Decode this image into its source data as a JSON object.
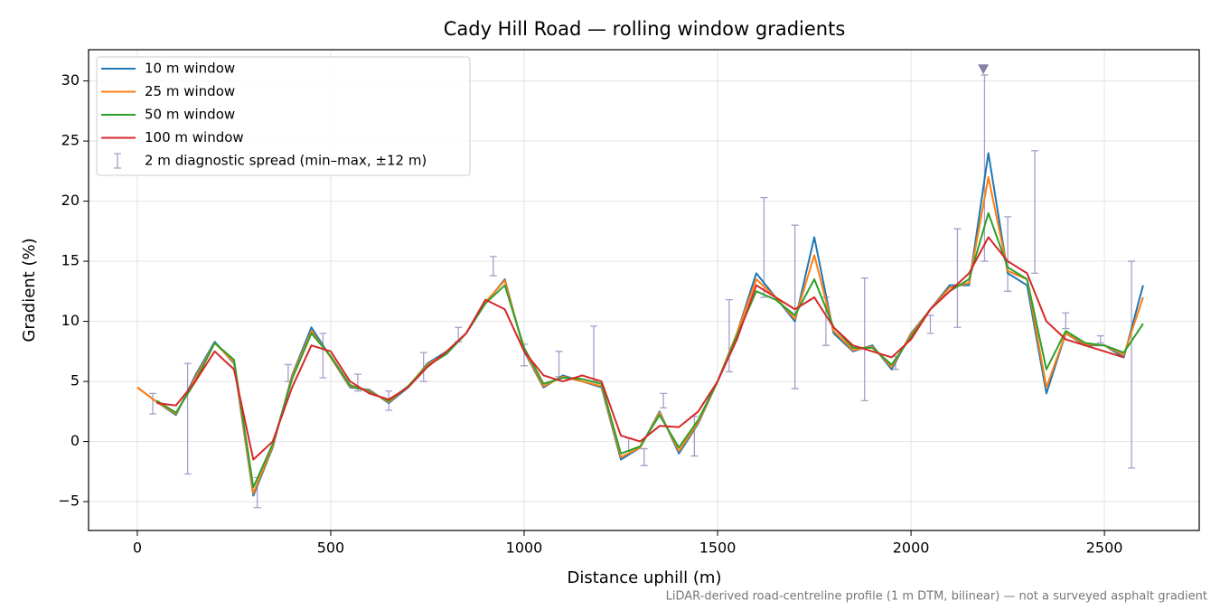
{
  "chart_data": {
    "type": "line",
    "title": "Cady Hill Road — rolling window gradients",
    "x_label": "Distance uphill (m)",
    "y_label": "Gradient (%)",
    "footnote": "LiDAR-derived road-centreline profile (1 m DTM, bilinear) — not a surveyed asphalt gradient",
    "xlim": [
      -126,
      2745
    ],
    "ylim": [
      -7.4,
      32.6
    ],
    "xticks": [
      0,
      500,
      1000,
      1500,
      2000,
      2500
    ],
    "yticks": [
      {
        "value": -5,
        "label": "−5"
      },
      0,
      5,
      10,
      15,
      20,
      25,
      30
    ],
    "grid": true,
    "legend": "upper left",
    "x": [
      0,
      50,
      100,
      150,
      200,
      250,
      300,
      350,
      400,
      450,
      500,
      550,
      600,
      650,
      700,
      750,
      800,
      850,
      900,
      950,
      1000,
      1050,
      1100,
      1150,
      1200,
      1250,
      1300,
      1350,
      1400,
      1450,
      1500,
      1550,
      1600,
      1650,
      1700,
      1750,
      1800,
      1850,
      1900,
      1950,
      2000,
      2050,
      2100,
      2150,
      2200,
      2250,
      2300,
      2350,
      2400,
      2450,
      2500,
      2550,
      2600
    ],
    "series": [
      {
        "name": "10 m window",
        "color": "#1f77b4",
        "values": [
          4.5,
          3.3,
          2.2,
          5.5,
          8.3,
          6.5,
          -4.5,
          -0.5,
          5.5,
          9.5,
          7,
          4.5,
          4.3,
          3.2,
          4.5,
          6.5,
          7.5,
          9,
          11.5,
          13.5,
          7.5,
          4.5,
          5.5,
          5,
          4.5,
          -1.5,
          -0.5,
          2.5,
          -1,
          1.5,
          5,
          9,
          14,
          12,
          10,
          17,
          9,
          7.5,
          8,
          6,
          9,
          11,
          13,
          13,
          24,
          14,
          13,
          4,
          9,
          8,
          8,
          7,
          13
        ]
      },
      {
        "name": "25 m window",
        "color": "#ff7f0e",
        "values": [
          4.5,
          3.3,
          2.3,
          5.3,
          8.2,
          6.6,
          -4.3,
          -0.4,
          5.4,
          9.2,
          7,
          4.6,
          4.2,
          3.3,
          4.6,
          6.4,
          7.4,
          9,
          11.6,
          13.4,
          7.6,
          4.6,
          5.4,
          5,
          4.6,
          -1.3,
          -0.5,
          2.4,
          -0.8,
          1.6,
          5,
          9,
          13.5,
          12,
          10.2,
          15.5,
          9.2,
          7.6,
          7.9,
          6.2,
          8.9,
          11,
          12.8,
          13.2,
          22,
          14.2,
          13.5,
          4.5,
          9,
          8.1,
          8,
          7.2,
          12
        ]
      },
      {
        "name": "50 m window",
        "color": "#2ca02c",
        "values": [
          null,
          3.4,
          2.4,
          5,
          8.2,
          6.8,
          -3.8,
          -0.2,
          5.2,
          9,
          7.1,
          4.7,
          4.1,
          3.4,
          4.6,
          6.3,
          7.3,
          9,
          11.5,
          13,
          7.8,
          4.8,
          5.3,
          5.2,
          4.8,
          -1,
          -0.4,
          2.2,
          -0.5,
          1.8,
          5,
          8.8,
          12.5,
          11.8,
          10.5,
          13.5,
          9.5,
          7.8,
          7.8,
          6.4,
          8.7,
          11,
          12.5,
          13.5,
          19,
          14.5,
          13.5,
          6,
          9.2,
          8.2,
          8,
          7.4,
          9.8
        ]
      },
      {
        "name": "100 m window",
        "color": "#d62728",
        "values": [
          null,
          3.2,
          3,
          5,
          7.5,
          6,
          -1.5,
          0,
          4.5,
          8,
          7.5,
          5,
          4,
          3.5,
          4.5,
          6.2,
          7.5,
          9,
          11.8,
          11,
          7.5,
          5.5,
          5,
          5.5,
          5,
          0.5,
          0,
          1.3,
          1.2,
          2.5,
          5,
          8.5,
          13,
          12,
          11,
          12,
          9.5,
          8,
          7.5,
          7,
          8.5,
          11,
          12.5,
          14,
          17,
          15,
          14,
          10,
          8.5,
          8,
          7.5,
          7,
          null
        ]
      }
    ],
    "error_bars": {
      "name": "2 m diagnostic spread (min–max, ±12 m)",
      "color": "#a39fc9",
      "x": [
        40,
        130,
        310,
        390,
        480,
        570,
        650,
        740,
        830,
        920,
        1000,
        1090,
        1180,
        1270,
        1310,
        1360,
        1440,
        1530,
        1620,
        1700,
        1780,
        1880,
        1960,
        2050,
        2120,
        2190,
        2250,
        2320,
        2400,
        2490,
        2570
      ],
      "low": [
        2.3,
        -2.7,
        -5.5,
        5,
        5.3,
        4.2,
        2.6,
        5,
        8.3,
        13.8,
        6.3,
        5.4,
        5,
        -0.8,
        -2,
        2.8,
        -1.2,
        5.8,
        12,
        4.4,
        8,
        3.4,
        6,
        9,
        9.5,
        15,
        12.5,
        14,
        9.4,
        8.2,
        -2.2
      ],
      "high": [
        4,
        6.5,
        -3,
        6.4,
        9,
        5.6,
        4.2,
        7.4,
        9.5,
        15.4,
        8.1,
        7.5,
        9.6,
        0.3,
        -0.6,
        4,
        2.1,
        11.8,
        20.3,
        18,
        12,
        13.6,
        7.1,
        10.5,
        17.7,
        30.5,
        18.7,
        24.2,
        10.7,
        8.8,
        15
      ]
    },
    "peak_marker": {
      "x": 2187,
      "y": 31,
      "color": "#8a80a8"
    }
  }
}
